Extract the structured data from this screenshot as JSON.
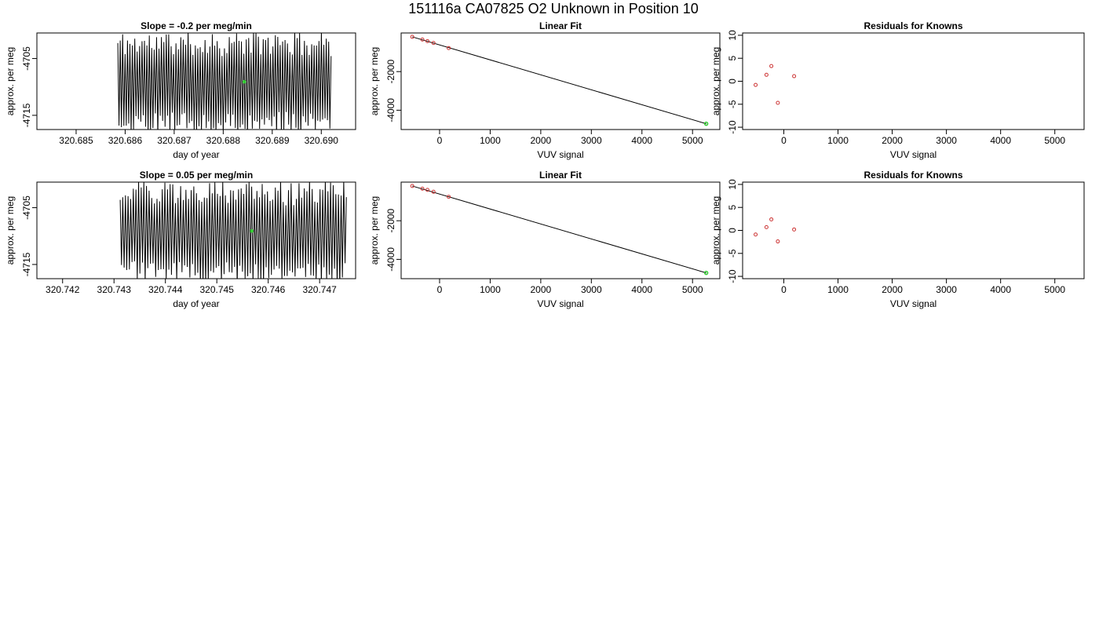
{
  "figure_title": "151116a     CA07825   O2 Unknown in Position  10",
  "colors": {
    "trace": "#000000",
    "fit_line": "#000000",
    "known": "#cc3333",
    "unknown": "#33cc33",
    "frame": "#000000"
  },
  "chart_data": [
    {
      "id": "row1-timeseries",
      "type": "line",
      "title": "Slope =  -0.2  per meg/min",
      "xlabel": "day of year",
      "ylabel": "approx. per meg",
      "xlim": [
        320.6842,
        320.6907
      ],
      "ylim": [
        -4717.5,
        -4700.5
      ],
      "xticks": [
        320.685,
        320.686,
        320.687,
        320.688,
        320.689,
        320.69
      ],
      "xtick_labels": [
        "320.685",
        "320.686",
        "320.687",
        "320.688",
        "320.689",
        "320.690"
      ],
      "yticks": [
        -4705,
        -4715
      ],
      "ytick_labels": [
        "-4705",
        "-4715"
      ],
      "trace": {
        "x_start": 320.68585,
        "x_end": 320.6902,
        "cycles": 88,
        "seed": 11,
        "y_center": -4709.5,
        "y_amplitude": 8.2
      },
      "unknown_point": {
        "x": 320.68843,
        "y": -4709.1
      }
    },
    {
      "id": "row1-linearfit",
      "type": "scatter",
      "title": "Linear Fit",
      "xlabel": "VUV signal",
      "ylabel": "approx. per meg",
      "xlim": [
        -760,
        5540
      ],
      "ylim": [
        -5000,
        0
      ],
      "xticks": [
        0,
        1000,
        2000,
        3000,
        4000,
        5000
      ],
      "xtick_labels": [
        "0",
        "1000",
        "2000",
        "3000",
        "4000",
        "5000"
      ],
      "yticks": [
        -2000,
        -4000
      ],
      "ytick_labels": [
        "-2000",
        "-4000"
      ],
      "knowns": [
        {
          "x": -540,
          "y": -200
        },
        {
          "x": -340,
          "y": -340
        },
        {
          "x": -240,
          "y": -420
        },
        {
          "x": -120,
          "y": -520
        },
        {
          "x": 180,
          "y": -780
        }
      ],
      "fit_line": [
        {
          "x": -540,
          "y": -200
        },
        {
          "x": 5270,
          "y": -4700
        }
      ],
      "unknown": {
        "x": 5270,
        "y": -4700
      }
    },
    {
      "id": "row1-residuals",
      "type": "scatter",
      "title": "Residuals for Knowns",
      "xlabel": "VUV signal",
      "ylabel": "approx. per meg",
      "xlim": [
        -760,
        5540
      ],
      "ylim": [
        -10.5,
        10.5
      ],
      "xticks": [
        0,
        1000,
        2000,
        3000,
        4000,
        5000
      ],
      "xtick_labels": [
        "0",
        "1000",
        "2000",
        "3000",
        "4000",
        "5000"
      ],
      "yticks": [
        10,
        5,
        0,
        -5,
        -10
      ],
      "ytick_labels": [
        "10",
        "5",
        "0",
        "-5",
        "-10"
      ],
      "residuals": [
        {
          "x": -520,
          "y": -0.8
        },
        {
          "x": -320,
          "y": 1.4
        },
        {
          "x": -230,
          "y": 3.3
        },
        {
          "x": -110,
          "y": -4.7
        },
        {
          "x": 190,
          "y": 1.1
        }
      ]
    },
    {
      "id": "row2-timeseries",
      "type": "line",
      "title": "Slope =  0.05  per meg/min",
      "xlabel": "day of year",
      "ylabel": "approx. per meg",
      "xlim": [
        320.7415,
        320.7477
      ],
      "ylim": [
        -4717.5,
        -4700.5
      ],
      "xticks": [
        320.742,
        320.743,
        320.744,
        320.745,
        320.746,
        320.747
      ],
      "xtick_labels": [
        "320.742",
        "320.743",
        "320.744",
        "320.745",
        "320.746",
        "320.747"
      ],
      "yticks": [
        -4705,
        -4715
      ],
      "ytick_labels": [
        "-4705",
        "-4715"
      ],
      "trace": {
        "x_start": 320.74312,
        "x_end": 320.74752,
        "cycles": 86,
        "seed": 29,
        "y_center": -4709.5,
        "y_amplitude": 8.2
      },
      "unknown_point": {
        "x": 320.74568,
        "y": -4709.1
      }
    },
    {
      "id": "row2-linearfit",
      "type": "scatter",
      "title": "Linear Fit",
      "xlabel": "VUV signal",
      "ylabel": "approx. per meg",
      "xlim": [
        -760,
        5540
      ],
      "ylim": [
        -5000,
        0
      ],
      "xticks": [
        0,
        1000,
        2000,
        3000,
        4000,
        5000
      ],
      "xtick_labels": [
        "0",
        "1000",
        "2000",
        "3000",
        "4000",
        "5000"
      ],
      "yticks": [
        -2000,
        -4000
      ],
      "ytick_labels": [
        "-2000",
        "-4000"
      ],
      "knowns": [
        {
          "x": -540,
          "y": -200
        },
        {
          "x": -340,
          "y": -340
        },
        {
          "x": -240,
          "y": -400
        },
        {
          "x": -120,
          "y": -500
        },
        {
          "x": 180,
          "y": -760
        }
      ],
      "fit_line": [
        {
          "x": -540,
          "y": -200
        },
        {
          "x": 5270,
          "y": -4700
        }
      ],
      "unknown": {
        "x": 5270,
        "y": -4700
      }
    },
    {
      "id": "row2-residuals",
      "type": "scatter",
      "title": "Residuals for Knowns",
      "xlabel": "VUV signal",
      "ylabel": "approx. per meg",
      "xlim": [
        -760,
        5540
      ],
      "ylim": [
        -10.5,
        10.5
      ],
      "xticks": [
        0,
        1000,
        2000,
        3000,
        4000,
        5000
      ],
      "xtick_labels": [
        "0",
        "1000",
        "2000",
        "3000",
        "4000",
        "5000"
      ],
      "yticks": [
        10,
        5,
        0,
        -5,
        -10
      ],
      "ytick_labels": [
        "10",
        "5",
        "0",
        "-5",
        "-10"
      ],
      "residuals": [
        {
          "x": -520,
          "y": -0.9
        },
        {
          "x": -320,
          "y": 0.7
        },
        {
          "x": -230,
          "y": 2.4
        },
        {
          "x": -110,
          "y": -2.4
        },
        {
          "x": 190,
          "y": 0.2
        }
      ]
    }
  ]
}
